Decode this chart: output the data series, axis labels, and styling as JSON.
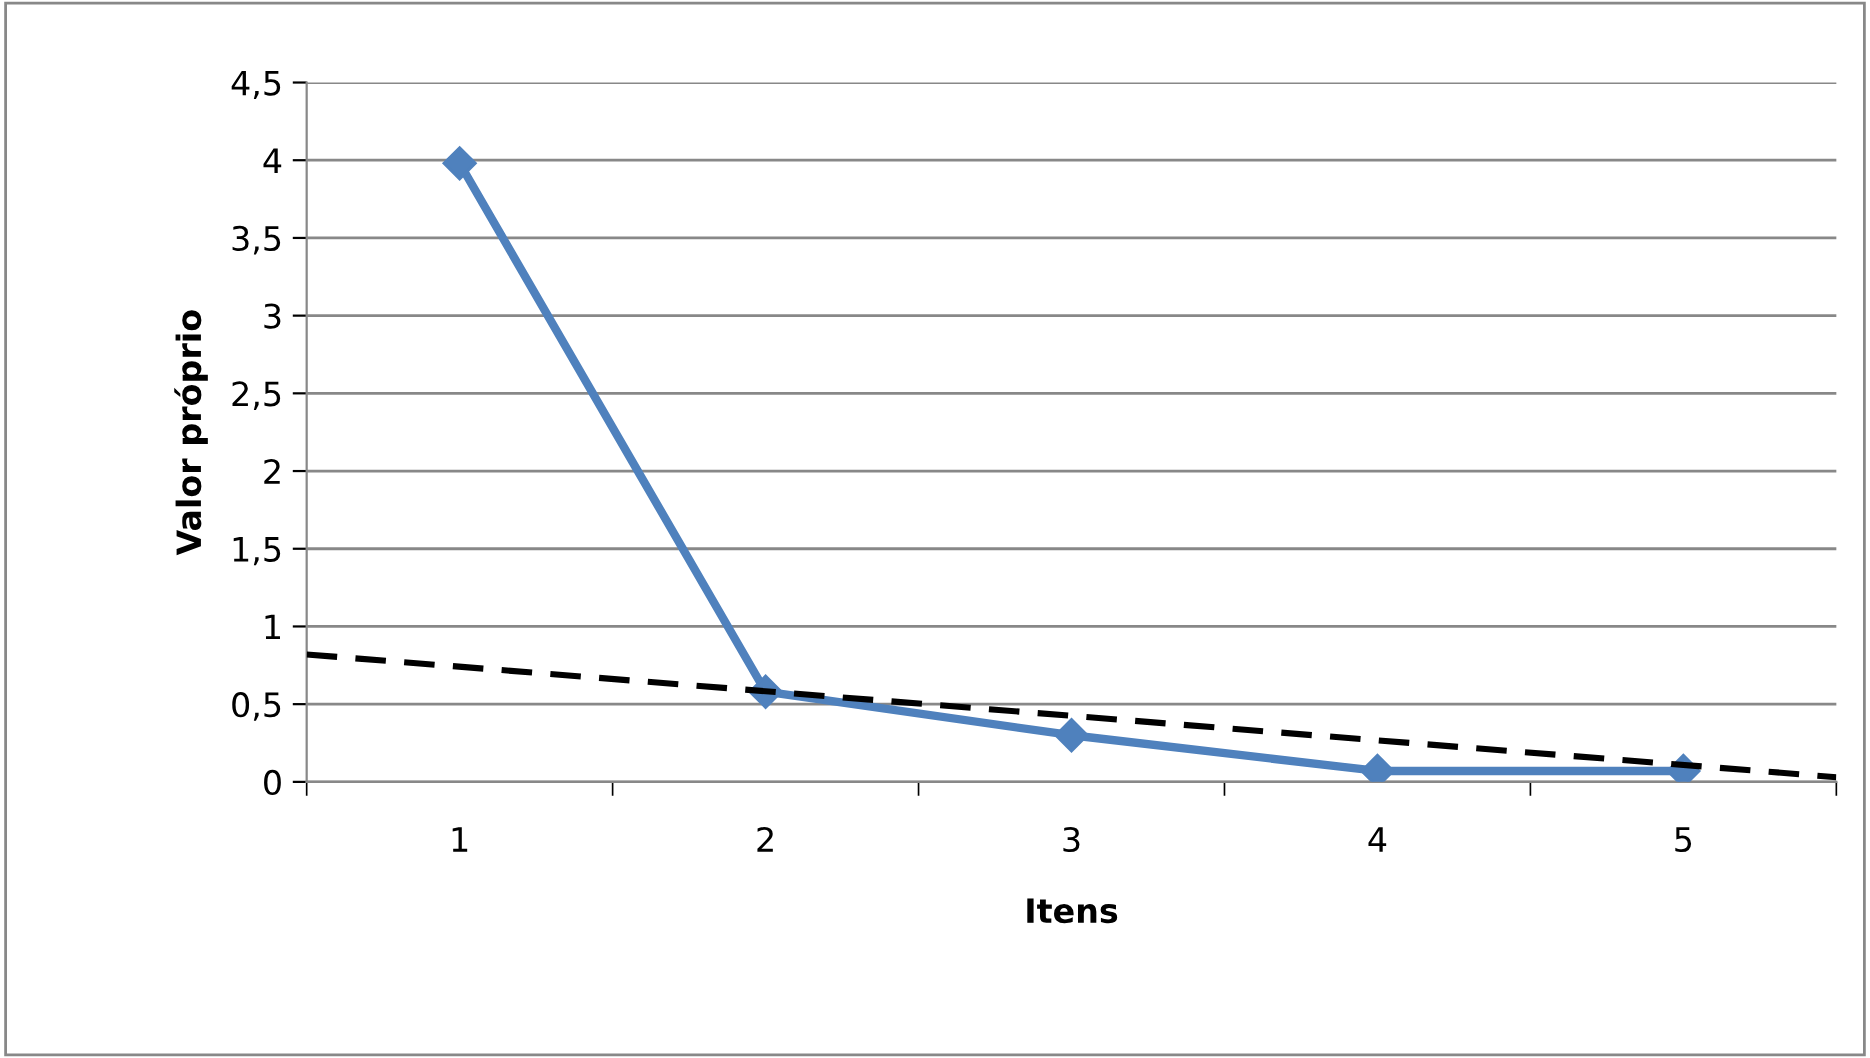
{
  "chart_data": {
    "type": "line",
    "xlabel": "Itens",
    "ylabel": "Valor próprio",
    "x": [
      1,
      2,
      3,
      4,
      5
    ],
    "series": [
      {
        "color": "#4f81bd",
        "values": [
          3.98,
          0.58,
          0.3,
          0.07,
          0.07
        ],
        "marker": "diamond",
        "line_style": "solid"
      },
      {
        "type": "line",
        "x": [
          0.5,
          5.5
        ],
        "color": "#000000",
        "values": [
          0.82,
          0.03
        ],
        "marker": "none",
        "line_style": "dashed"
      }
    ],
    "xlim": [
      0.5,
      5.5
    ],
    "xticks": [
      1,
      2,
      3,
      4,
      5
    ],
    "ylim": [
      0,
      4.5
    ],
    "yticks": [
      0,
      {
        "value": 0.5,
        "label": "0,5"
      },
      1,
      {
        "value": 1.5,
        "label": "1,5"
      },
      2,
      {
        "value": 2.5,
        "label": "2,5"
      },
      3,
      {
        "value": 3.5,
        "label": "3,5"
      },
      4,
      {
        "value": 4.5,
        "label": "4,5"
      }
    ],
    "grid": "y",
    "legend": false
  }
}
